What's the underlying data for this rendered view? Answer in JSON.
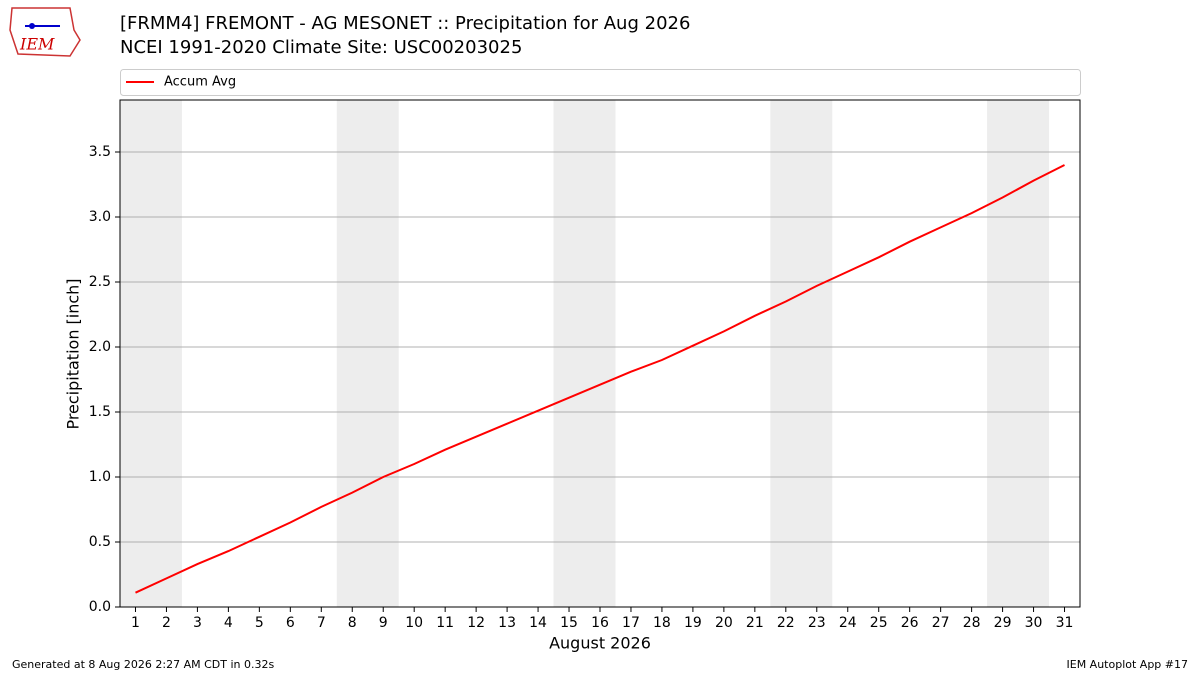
{
  "logo_text": "IEM",
  "footer": {
    "left": "Generated at 8 Aug 2026 2:27 AM CDT in 0.32s",
    "right": "IEM Autoplot App #17"
  },
  "chart_data": {
    "type": "line",
    "title": "[FRMM4] FREMONT - AG MESONET :: Precipitation for Aug 2026",
    "subtitle": "NCEI 1991-2020 Climate Site: USC00203025",
    "x_label": "August 2026",
    "y_label": "Precipitation [inch]",
    "x": [
      1,
      2,
      3,
      4,
      5,
      6,
      7,
      8,
      9,
      10,
      11,
      12,
      13,
      14,
      15,
      16,
      17,
      18,
      19,
      20,
      21,
      22,
      23,
      24,
      25,
      26,
      27,
      28,
      29,
      30,
      31
    ],
    "series": [
      {
        "name": "Accum Avg",
        "color": "#ff0000",
        "values": [
          0.11,
          0.22,
          0.33,
          0.43,
          0.54,
          0.65,
          0.77,
          0.88,
          1.0,
          1.1,
          1.21,
          1.31,
          1.41,
          1.51,
          1.61,
          1.71,
          1.81,
          1.9,
          2.01,
          2.12,
          2.24,
          2.35,
          2.47,
          2.58,
          2.69,
          2.81,
          2.92,
          3.03,
          3.15,
          3.28,
          3.4
        ]
      }
    ],
    "xlim": [
      0.5,
      31.5
    ],
    "xticks": [
      1,
      2,
      3,
      4,
      5,
      6,
      7,
      8,
      9,
      10,
      11,
      12,
      13,
      14,
      15,
      16,
      17,
      18,
      19,
      20,
      21,
      22,
      23,
      24,
      25,
      26,
      27,
      28,
      29,
      30,
      31
    ],
    "ylim": [
      0,
      3.9
    ],
    "yticks": [
      {
        "value": 0,
        "label": "0.0"
      },
      0.5,
      {
        "value": 1,
        "label": "1.0"
      },
      1.5,
      {
        "value": 2,
        "label": "2.0"
      },
      2.5,
      {
        "value": 3,
        "label": "3.0"
      },
      3.5
    ],
    "shaded_x_ranges": [
      [
        0.5,
        2.5
      ],
      [
        7.5,
        9.5
      ],
      [
        14.5,
        16.5
      ],
      [
        21.5,
        23.5
      ],
      [
        28.5,
        30.5
      ]
    ],
    "shade_color": "#ededed",
    "grid": true,
    "legend": "top"
  }
}
